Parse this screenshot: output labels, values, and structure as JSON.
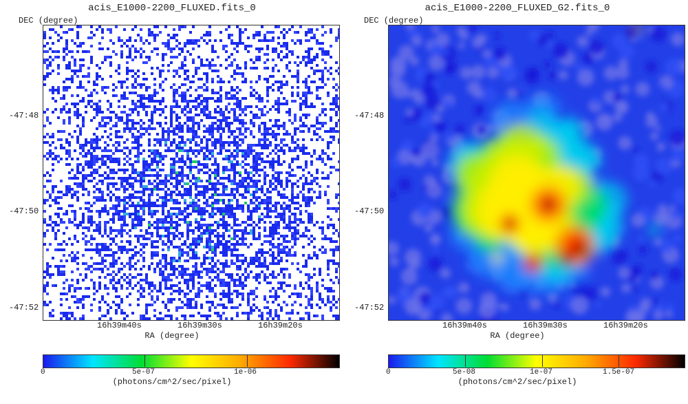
{
  "panels": [
    {
      "title": "acis_E1000-2200_FLUXED.fits_0",
      "ylabel": "DEC (degree)",
      "xlabel": "RA (degree)",
      "yticks": [
        "-47:48",
        "-47:50",
        "-47:52"
      ],
      "xticks": [
        "16h39m40s",
        "16h39m30s",
        "16h39m20s"
      ],
      "colorbar_ticks": [
        "0",
        "5e-07",
        "1e-06"
      ],
      "colorbar_unit": "(photons/cm^2/sec/pixel)"
    },
    {
      "title": "acis_E1000-2200_FLUXED_G2.fits_0",
      "ylabel": "DEC (degree)",
      "xlabel": "RA (degree)",
      "yticks": [
        "-47:48",
        "-47:50",
        "-47:52"
      ],
      "xticks": [
        "16h39m40s",
        "16h39m30s",
        "16h39m20s"
      ],
      "colorbar_ticks": [
        "0",
        "5e-08",
        "1e-07",
        "1.5e-07"
      ],
      "colorbar_unit": "(photons/cm^2/sec/pixel)"
    }
  ],
  "colormap": [
    "#ffffff",
    "#1a1aee",
    "#00e5ff",
    "#00dd33",
    "#ffff00",
    "#ffaa00",
    "#ff2a00",
    "#000000"
  ]
}
